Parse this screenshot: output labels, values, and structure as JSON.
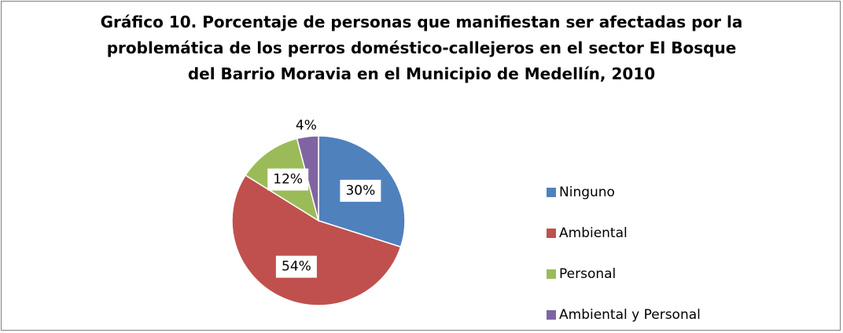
{
  "chart_data": {
    "type": "pie",
    "title": "Gráfico 10. Porcentaje de personas que manifiestan ser afectadas por la problemática de los perros doméstico-callejeros en el sector El Bosque del Barrio Moravia en el Municipio de Medellín, 2010",
    "categories": [
      "Ninguno",
      "Ambiental",
      "Personal",
      "Ambiental y Personal"
    ],
    "values": [
      30,
      54,
      12,
      4
    ],
    "value_labels": [
      "30%",
      "54%",
      "12%",
      "4%"
    ],
    "colors": [
      "#4f81bd",
      "#c0504d",
      "#9bbb59",
      "#8064a2"
    ],
    "legend": "right"
  }
}
